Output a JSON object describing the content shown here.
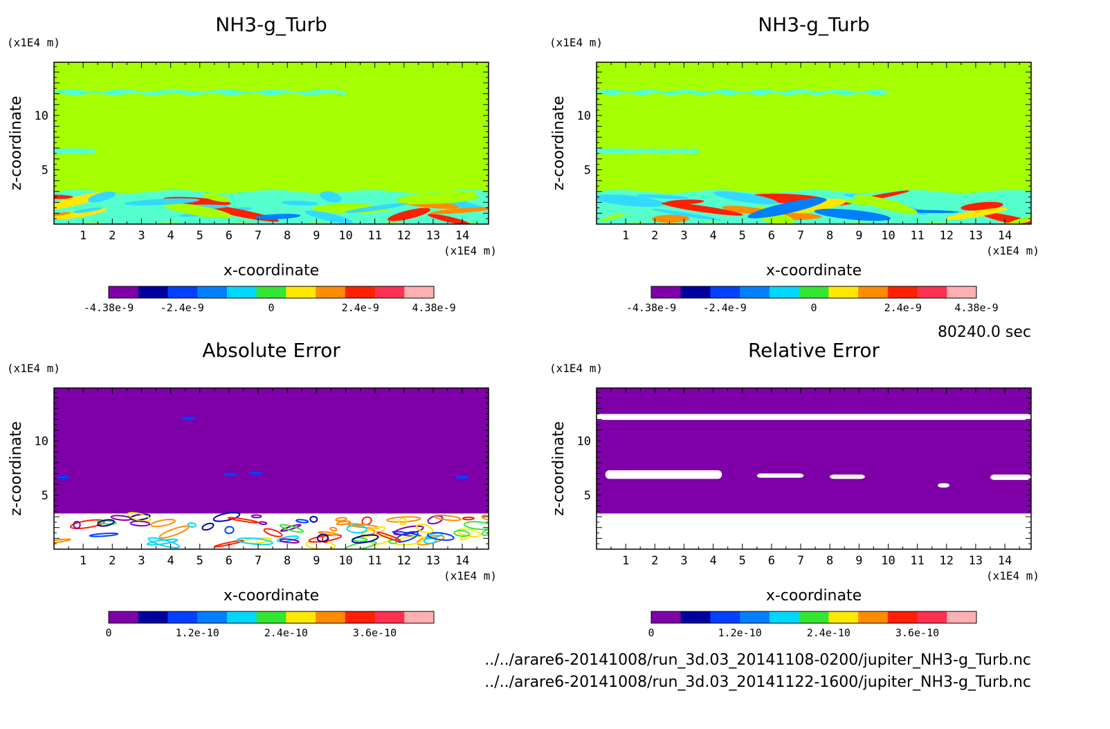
{
  "time_label": "80240.0 sec",
  "files": [
    "../../arare6-20141008/run_3d.03_20141108-0200/jupiter_NH3-g_Turb.nc",
    "../../arare6-20141008/run_3d.03_20141122-1600/jupiter_NH3-g_Turb.nc"
  ],
  "colors": {
    "palette": [
      "#7f00a8",
      "#0000a0",
      "#0040ff",
      "#0080ff",
      "#00d8ff",
      "#33e633",
      "#ffe800",
      "#ff8c00",
      "#ff2000",
      "#ff3050",
      "#ffb0b0"
    ],
    "background_green": "#a6ff00",
    "light_cyan": "#55ffcc"
  },
  "chart_data": [
    {
      "type": "heatmap",
      "title": "NH3-g_Turb",
      "xlabel": "x-coordinate",
      "ylabel": "z-coordinate",
      "x_unit": "(x1E4 m)",
      "y_unit": "(x1E4 m)",
      "x_ticks": [
        1,
        2,
        3,
        4,
        5,
        6,
        7,
        8,
        9,
        10,
        11,
        12,
        13,
        14
      ],
      "y_ticks": [
        5,
        10
      ],
      "xlim": [
        0,
        14.9
      ],
      "ylim": [
        0,
        14.9
      ],
      "colorbar_ticks": [
        "-4.38e-9",
        "-2.4e-9",
        "0",
        "2.4e-9",
        "4.38e-9"
      ],
      "colorbar_range": [
        -4.38e-09,
        4.38e-09
      ]
    },
    {
      "type": "heatmap",
      "title": "NH3-g_Turb",
      "xlabel": "x-coordinate",
      "ylabel": "z-coordinate",
      "x_unit": "(x1E4 m)",
      "y_unit": "(x1E4 m)",
      "x_ticks": [
        1,
        2,
        3,
        4,
        5,
        6,
        7,
        8,
        9,
        10,
        11,
        12,
        13,
        14
      ],
      "y_ticks": [
        5,
        10
      ],
      "xlim": [
        0,
        14.9
      ],
      "ylim": [
        0,
        14.9
      ],
      "colorbar_ticks": [
        "-4.38e-9",
        "-2.4e-9",
        "0",
        "2.4e-9",
        "4.38e-9"
      ],
      "colorbar_range": [
        -4.38e-09,
        4.38e-09
      ]
    },
    {
      "type": "heatmap",
      "title": "Absolute Error",
      "xlabel": "x-coordinate",
      "ylabel": "z-coordinate",
      "x_unit": "(x1E4 m)",
      "y_unit": "(x1E4 m)",
      "x_ticks": [
        1,
        2,
        3,
        4,
        5,
        6,
        7,
        8,
        9,
        10,
        11,
        12,
        13,
        14
      ],
      "y_ticks": [
        5,
        10
      ],
      "xlim": [
        0,
        14.9
      ],
      "ylim": [
        0,
        14.9
      ],
      "colorbar_ticks": [
        "0",
        "1.2e-10",
        "2.4e-10",
        "3.6e-10"
      ],
      "colorbar_range": [
        0,
        4.4e-10
      ]
    },
    {
      "type": "heatmap",
      "title": "Relative Error",
      "xlabel": "x-coordinate",
      "ylabel": "z-coordinate",
      "x_unit": "(x1E4 m)",
      "y_unit": "(x1E4 m)",
      "x_ticks": [
        1,
        2,
        3,
        4,
        5,
        6,
        7,
        8,
        9,
        10,
        11,
        12,
        13,
        14
      ],
      "y_ticks": [
        5,
        10
      ],
      "xlim": [
        0,
        14.9
      ],
      "ylim": [
        0,
        14.9
      ],
      "colorbar_ticks": [
        "0",
        "1.2e-10",
        "2.4e-10",
        "3.6e-10"
      ],
      "colorbar_range": [
        0,
        4.4e-10
      ]
    }
  ]
}
